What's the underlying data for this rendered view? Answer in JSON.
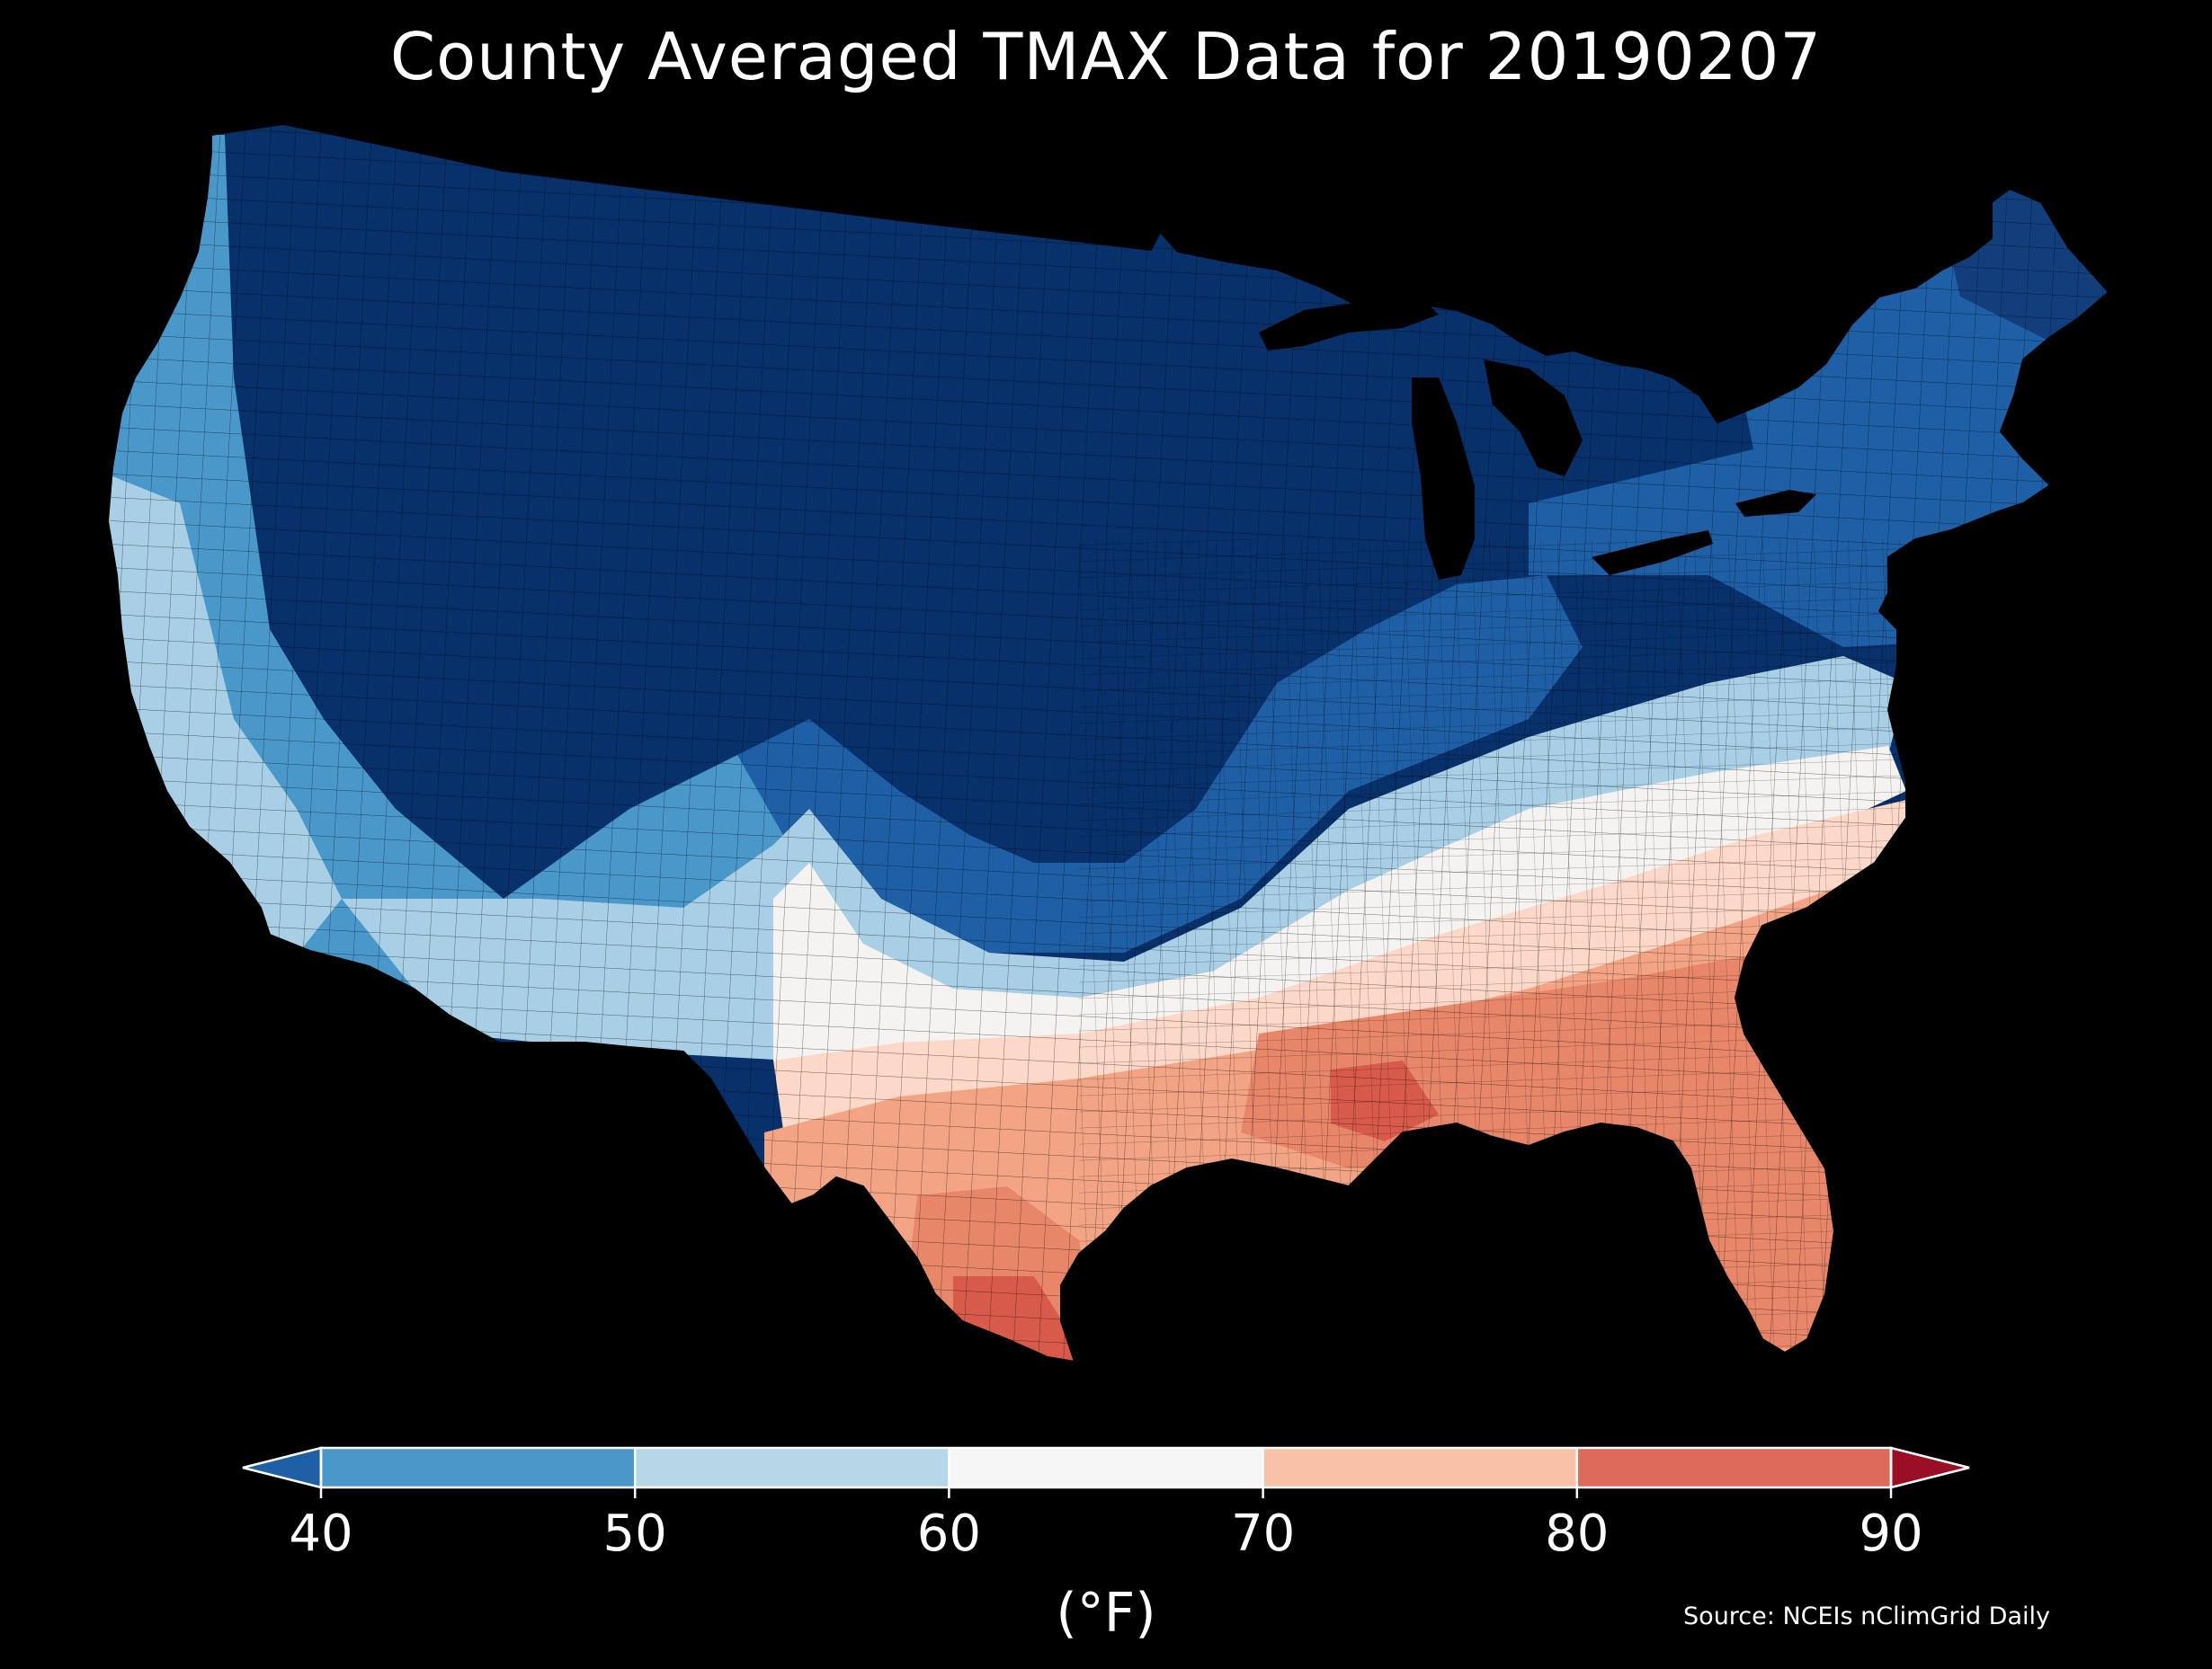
{
  "title": "County Averaged TMAX Data for 20190207",
  "colorbar": {
    "unit_label": "(°F)",
    "ticks": [
      "40",
      "50",
      "60",
      "70",
      "80",
      "90"
    ],
    "bins": [
      {
        "from": 40,
        "to": 50,
        "color": "#4a98c9"
      },
      {
        "from": 50,
        "to": 60,
        "color": "#b6d7e8"
      },
      {
        "from": 60,
        "to": 70,
        "color": "#f7f6f6"
      },
      {
        "from": 70,
        "to": 80,
        "color": "#f9c2a6"
      },
      {
        "from": 80,
        "to": 90,
        "color": "#dc6c59"
      }
    ],
    "under_color": "#1f5fa6",
    "over_color": "#9a0f26",
    "extend": "both"
  },
  "source": "Source: NCEIs nClimGrid Daily",
  "map": {
    "region": "contiguous-united-states",
    "colors": {
      "coldest": "#08306b",
      "deep_blue": "#123f7c",
      "mid_blue": "#1f5fa6",
      "blue": "#4a98c9",
      "light_blue": "#a8cfe5",
      "pale_blue": "#d6e7f2",
      "white": "#f5f3f1",
      "pale_salmon": "#fbd8c8",
      "salmon": "#f2a484",
      "warm": "#e8866a",
      "hot": "#d75a4a",
      "background": "#000000",
      "border": "#000000"
    }
  }
}
